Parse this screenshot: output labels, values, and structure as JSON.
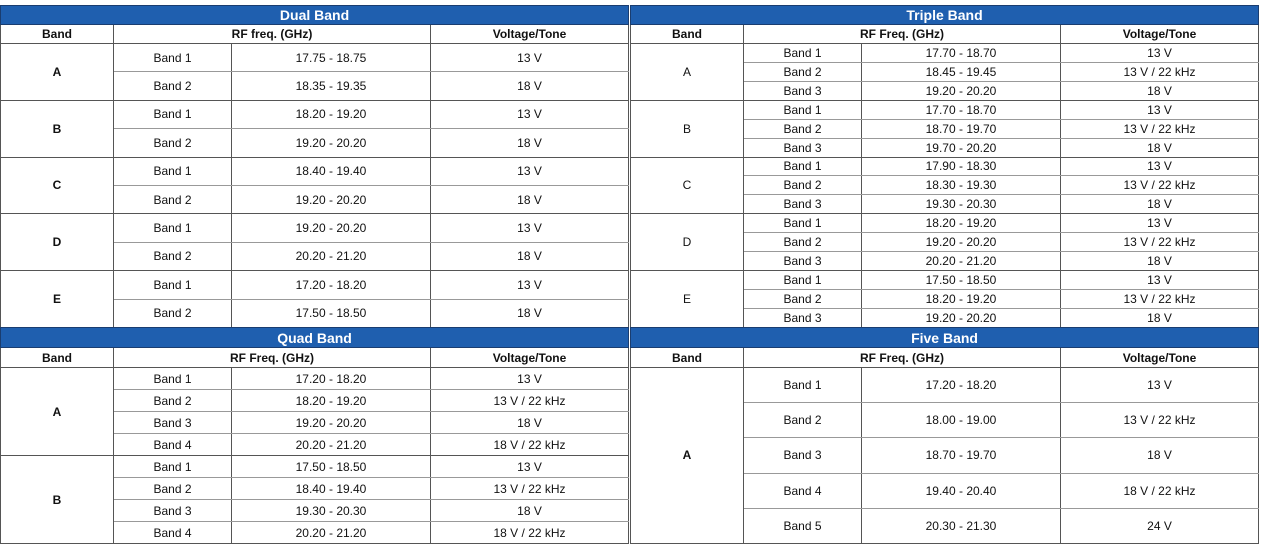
{
  "headers": {
    "band": "Band",
    "voltage": "Voltage/Tone"
  },
  "colors": {
    "title_bar": "#1f5faf",
    "title_text": "#ffffff"
  },
  "tables": [
    {
      "id": "dual",
      "title": "Dual Band",
      "rf_header": "RF freq. (GHz)",
      "bold_groups": true,
      "groups": [
        {
          "band": "A",
          "rows": [
            [
              "Band 1",
              "17.75 - 18.75",
              "13 V"
            ],
            [
              "Band 2",
              "18.35 - 19.35",
              "18 V"
            ]
          ]
        },
        {
          "band": "B",
          "rows": [
            [
              "Band 1",
              "18.20 - 19.20",
              "13 V"
            ],
            [
              "Band 2",
              "19.20 - 20.20",
              "18 V"
            ]
          ]
        },
        {
          "band": "C",
          "rows": [
            [
              "Band 1",
              "18.40 - 19.40",
              "13 V"
            ],
            [
              "Band 2",
              "19.20 - 20.20",
              "18 V"
            ]
          ]
        },
        {
          "band": "D",
          "rows": [
            [
              "Band 1",
              "19.20 - 20.20",
              "13 V"
            ],
            [
              "Band 2",
              "20.20 - 21.20",
              "18 V"
            ]
          ]
        },
        {
          "band": "E",
          "rows": [
            [
              "Band 1",
              "17.20 - 18.20",
              "13 V"
            ],
            [
              "Band 2",
              "17.50 - 18.50",
              "18 V"
            ]
          ]
        }
      ]
    },
    {
      "id": "triple",
      "title": "Triple Band",
      "rf_header": "RF Freq. (GHz)",
      "bold_groups": false,
      "groups": [
        {
          "band": "A",
          "rows": [
            [
              "Band 1",
              "17.70 - 18.70",
              "13 V"
            ],
            [
              "Band 2",
              "18.45 - 19.45",
              "13 V / 22 kHz"
            ],
            [
              "Band 3",
              "19.20 - 20.20",
              "18 V"
            ]
          ]
        },
        {
          "band": "B",
          "rows": [
            [
              "Band 1",
              "17.70 - 18.70",
              "13 V"
            ],
            [
              "Band 2",
              "18.70 - 19.70",
              "13 V / 22 kHz"
            ],
            [
              "Band 3",
              "19.70 - 20.20",
              "18 V"
            ]
          ]
        },
        {
          "band": "C",
          "rows": [
            [
              "Band 1",
              "17.90 - 18.30",
              "13 V"
            ],
            [
              "Band 2",
              "18.30 - 19.30",
              "13 V / 22 kHz"
            ],
            [
              "Band 3",
              "19.30 - 20.30",
              "18 V"
            ]
          ]
        },
        {
          "band": "D",
          "rows": [
            [
              "Band 1",
              "18.20 - 19.20",
              "13 V"
            ],
            [
              "Band 2",
              "19.20 - 20.20",
              "13 V / 22 kHz"
            ],
            [
              "Band 3",
              "20.20 - 21.20",
              "18 V"
            ]
          ]
        },
        {
          "band": "E",
          "rows": [
            [
              "Band 1",
              "17.50 - 18.50",
              "13 V"
            ],
            [
              "Band 2",
              "18.20 - 19.20",
              "13 V / 22 kHz"
            ],
            [
              "Band 3",
              "19.20 - 20.20",
              "18 V"
            ]
          ]
        }
      ]
    },
    {
      "id": "quad",
      "title": "Quad Band",
      "rf_header": "RF Freq. (GHz)",
      "bold_groups": true,
      "groups": [
        {
          "band": "A",
          "rows": [
            [
              "Band 1",
              "17.20 - 18.20",
              "13 V"
            ],
            [
              "Band 2",
              "18.20 - 19.20",
              "13 V / 22 kHz"
            ],
            [
              "Band 3",
              "19.20 - 20.20",
              "18 V"
            ],
            [
              "Band 4",
              "20.20 - 21.20",
              "18 V / 22 kHz"
            ]
          ]
        },
        {
          "band": "B",
          "rows": [
            [
              "Band 1",
              "17.50 - 18.50",
              "13 V"
            ],
            [
              "Band 2",
              "18.40 - 19.40",
              "13 V / 22 kHz"
            ],
            [
              "Band 3",
              "19.30 - 20.30",
              "18 V"
            ],
            [
              "Band 4",
              "20.20 - 21.20",
              "18 V / 22 kHz"
            ]
          ]
        }
      ]
    },
    {
      "id": "five",
      "title": "Five Band",
      "rf_header": "RF Freq. (GHz)",
      "bold_groups": true,
      "groups": [
        {
          "band": "A",
          "rows": [
            [
              "Band 1",
              "17.20 - 18.20",
              "13 V"
            ],
            [
              "Band 2",
              "18.00 - 19.00",
              "13 V / 22 kHz"
            ],
            [
              "Band 3",
              "18.70 - 19.70",
              "18 V"
            ],
            [
              "Band 4",
              "19.40 - 20.40",
              "18 V / 22 kHz"
            ],
            [
              "Band 5",
              "20.30 - 21.30",
              "24 V"
            ]
          ]
        }
      ]
    }
  ]
}
